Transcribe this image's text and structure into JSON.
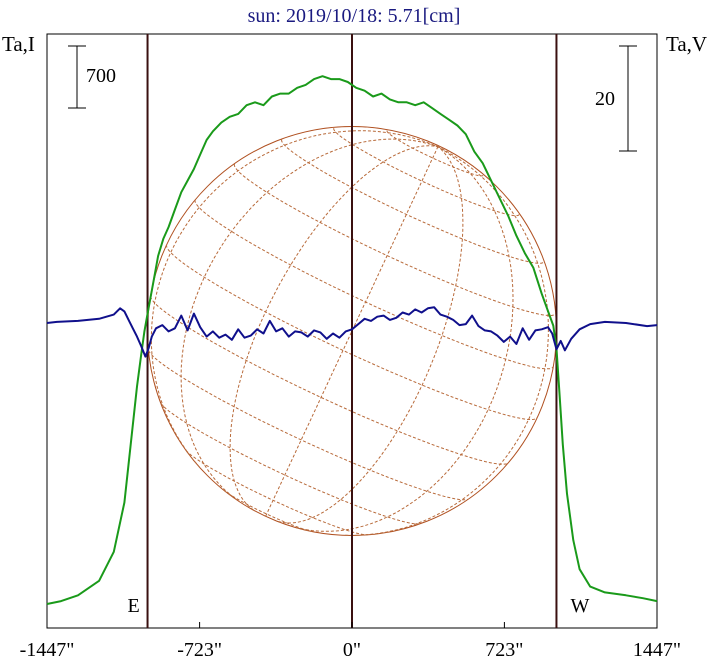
{
  "title": "sun: 2019/10/18: 5.71[cm]",
  "colors": {
    "title": "#1a1a80",
    "frame": "#000000",
    "marker_line": "#3a1010",
    "intensity": "#1a9a1a",
    "polarization": "#10108c",
    "disk": "#b05020",
    "grid": "#b86a3a"
  },
  "chart_data": {
    "type": "line",
    "title": "sun: 2019/10/18: 5.71[cm]",
    "x_ticks": [
      {
        "value": -1447,
        "label": "-1447\""
      },
      {
        "value": -723,
        "label": "-723\""
      },
      {
        "value": 0,
        "label": "0\""
      },
      {
        "value": 723,
        "label": "723\""
      },
      {
        "value": 1447,
        "label": "1447\""
      }
    ],
    "xlim": [
      -1447,
      1447
    ],
    "left_axis_label": "Ta,I",
    "right_axis_label": "Ta,V",
    "left_scale_label": "700",
    "right_scale_label": "20",
    "limb_markers": [
      {
        "x": -970,
        "label": "E"
      },
      {
        "x": 0,
        "label": ""
      },
      {
        "x": 970,
        "label": "W"
      }
    ],
    "solar_disk_radius_arcsec": 970,
    "series": [
      {
        "id": "intensity",
        "axis": "left",
        "x": [
          -1447,
          -1380,
          -1300,
          -1200,
          -1130,
          -1080,
          -1050,
          -1020,
          -1000,
          -985,
          -970,
          -955,
          -940,
          -920,
          -895,
          -870,
          -840,
          -810,
          -780,
          -750,
          -720,
          -690,
          -660,
          -620,
          -580,
          -540,
          -500,
          -460,
          -420,
          -380,
          -340,
          -300,
          -260,
          -220,
          -180,
          -140,
          -100,
          -60,
          -20,
          20,
          60,
          100,
          140,
          180,
          220,
          260,
          300,
          340,
          380,
          420,
          460,
          500,
          540,
          580,
          620,
          660,
          700,
          740,
          780,
          820,
          860,
          900,
          930,
          955,
          970,
          985,
          1000,
          1020,
          1050,
          1080,
          1130,
          1200,
          1300,
          1380,
          1447
        ],
        "y": [
          0.0,
          0.01,
          0.03,
          0.08,
          0.18,
          0.35,
          0.55,
          0.75,
          0.86,
          0.94,
          1.0,
          1.06,
          1.12,
          1.2,
          1.26,
          1.3,
          1.36,
          1.42,
          1.46,
          1.5,
          1.55,
          1.6,
          1.63,
          1.66,
          1.68,
          1.69,
          1.72,
          1.73,
          1.72,
          1.75,
          1.76,
          1.76,
          1.78,
          1.79,
          1.81,
          1.82,
          1.81,
          1.81,
          1.8,
          1.78,
          1.77,
          1.75,
          1.76,
          1.74,
          1.73,
          1.73,
          1.72,
          1.73,
          1.71,
          1.69,
          1.67,
          1.65,
          1.62,
          1.56,
          1.52,
          1.46,
          1.4,
          1.34,
          1.27,
          1.21,
          1.16,
          1.07,
          1.01,
          0.96,
          0.88,
          0.72,
          0.55,
          0.38,
          0.22,
          0.12,
          0.06,
          0.04,
          0.03,
          0.02,
          0.01
        ]
      },
      {
        "id": "polarization",
        "axis": "right",
        "x": [
          -1447,
          -1400,
          -1300,
          -1200,
          -1130,
          -1100,
          -1080,
          -1060,
          -1040,
          -1020,
          -1000,
          -980,
          -965,
          -950,
          -930,
          -900,
          -870,
          -840,
          -810,
          -780,
          -750,
          -720,
          -690,
          -660,
          -630,
          -600,
          -570,
          -540,
          -510,
          -480,
          -450,
          -420,
          -390,
          -360,
          -330,
          -300,
          -270,
          -240,
          -210,
          -180,
          -150,
          -120,
          -90,
          -60,
          -30,
          0,
          30,
          60,
          90,
          120,
          150,
          180,
          210,
          240,
          270,
          300,
          330,
          360,
          390,
          420,
          450,
          480,
          510,
          540,
          570,
          600,
          630,
          660,
          690,
          720,
          750,
          780,
          810,
          840,
          870,
          900,
          930,
          950,
          970,
          990,
          1010,
          1040,
          1080,
          1130,
          1200,
          1300,
          1400,
          1447
        ],
        "y": [
          0.0,
          0.2,
          0.4,
          0.8,
          1.6,
          2.8,
          2.2,
          0.6,
          -1.0,
          -2.6,
          -4.4,
          -6.4,
          -4.8,
          -2.6,
          -1.0,
          -0.4,
          -1.6,
          -1.0,
          1.4,
          -1.4,
          1.8,
          -0.8,
          -2.6,
          -1.6,
          -2.8,
          -2.2,
          -3.2,
          -1.2,
          -2.8,
          -2.4,
          -1.2,
          -2.0,
          0.4,
          -1.6,
          -1.0,
          -2.6,
          -1.6,
          -1.8,
          -2.6,
          -1.4,
          -1.8,
          -3.0,
          -2.0,
          -2.8,
          -1.6,
          -1.2,
          -0.2,
          0.8,
          0.4,
          1.2,
          1.4,
          0.6,
          1.0,
          2.0,
          1.6,
          2.6,
          2.0,
          2.8,
          3.0,
          1.6,
          1.2,
          0.6,
          -0.4,
          -0.2,
          1.4,
          -0.6,
          -1.4,
          -1.6,
          -2.4,
          -3.6,
          -2.6,
          -4.0,
          -1.0,
          -3.2,
          -1.4,
          -1.2,
          -0.8,
          -2.0,
          -5.0,
          -3.4,
          -5.2,
          -3.0,
          -1.2,
          -0.2,
          0.2,
          0.0,
          -0.6,
          -0.4
        ]
      }
    ]
  }
}
